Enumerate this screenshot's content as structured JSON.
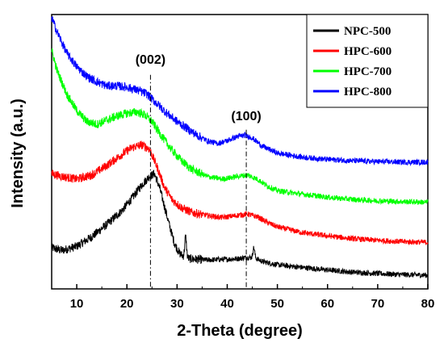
{
  "chart_data": {
    "type": "line",
    "title": "",
    "xlabel": "2-Theta (degree)",
    "ylabel": "Intensity (a.u.)",
    "xlim": [
      5,
      80
    ],
    "xticks": [
      10,
      20,
      30,
      40,
      50,
      60,
      70,
      80
    ],
    "ylim": [
      0,
      100
    ],
    "yticks_visible": false,
    "grid": false,
    "legend_position": "top-right",
    "series": [
      {
        "name": "NPC-500",
        "color": "#000000",
        "x": [
          5,
          7,
          10,
          13,
          16,
          19,
          21,
          23,
          24.5,
          25.5,
          26.5,
          27.5,
          28.5,
          29.5,
          30.5,
          31.5,
          32.5,
          34,
          36,
          38,
          40,
          42,
          44,
          45.5,
          47,
          50,
          55,
          60,
          65,
          70,
          75,
          80
        ],
        "y": [
          15.0,
          14.0,
          15.5,
          19.0,
          23.5,
          28.5,
          33.0,
          38.0,
          41.0,
          42.0,
          37.0,
          30.0,
          23.0,
          16.5,
          13.0,
          11.5,
          11.0,
          10.8,
          10.5,
          10.7,
          10.8,
          11.0,
          11.5,
          11.3,
          10.0,
          8.8,
          7.8,
          6.9,
          6.1,
          5.6,
          5.2,
          5.0
        ],
        "annotations_peaks": [
          {
            "x": 31.7,
            "y": 19
          },
          {
            "x": 45.3,
            "y": 15
          }
        ]
      },
      {
        "name": "HPC-600",
        "color": "#ff0000",
        "x": [
          5,
          7,
          10,
          13,
          16,
          19,
          21,
          23,
          24.5,
          26,
          27.5,
          29,
          31,
          33,
          36,
          39,
          42,
          44,
          46,
          48,
          50,
          55,
          60,
          65,
          70,
          75,
          80
        ],
        "y": [
          42.0,
          41.0,
          40.0,
          41.5,
          45.0,
          49.0,
          51.5,
          52.5,
          51.0,
          44.5,
          37.0,
          32.5,
          29.5,
          27.8,
          26.8,
          26.0,
          26.8,
          27.3,
          26.3,
          24.2,
          22.6,
          20.5,
          19.3,
          18.3,
          17.7,
          17.2,
          17.0
        ]
      },
      {
        "name": "HPC-700",
        "color": "#00ff00",
        "x": [
          5,
          6,
          8,
          10,
          12,
          14,
          16,
          18,
          20,
          22,
          23.5,
          25,
          27,
          29,
          31,
          33,
          36,
          39,
          42,
          44,
          46,
          48,
          50,
          55,
          60,
          65,
          70,
          75,
          80
        ],
        "y": [
          87.0,
          80.0,
          71.0,
          65.0,
          61.0,
          60.0,
          61.5,
          63.0,
          64.0,
          64.5,
          63.5,
          61.0,
          55.5,
          50.5,
          46.5,
          43.5,
          41.0,
          40.0,
          41.0,
          41.5,
          40.0,
          37.5,
          35.8,
          34.5,
          33.4,
          32.6,
          32.1,
          31.8,
          31.6
        ]
      },
      {
        "name": "HPC-800",
        "color": "#0000ff",
        "x": [
          5,
          6,
          8,
          10,
          12,
          14,
          16,
          18,
          20,
          22,
          24,
          26,
          28,
          30,
          32,
          34,
          36,
          38,
          40,
          42,
          43.5,
          45,
          47,
          50,
          55,
          60,
          65,
          70,
          75,
          80
        ],
        "y": [
          99.0,
          94.0,
          86.0,
          81.0,
          77.5,
          75.5,
          74.0,
          74.0,
          73.5,
          72.5,
          71.0,
          67.5,
          64.0,
          61.0,
          58.5,
          56.0,
          54.0,
          53.0,
          54.0,
          55.5,
          56.0,
          55.0,
          52.0,
          49.5,
          48.0,
          47.2,
          46.7,
          46.4,
          46.2,
          46.2
        ]
      }
    ],
    "annotations": [
      {
        "text": "(002)",
        "x": 24.7
      },
      {
        "text": "(100)",
        "x": 43.8
      }
    ]
  }
}
